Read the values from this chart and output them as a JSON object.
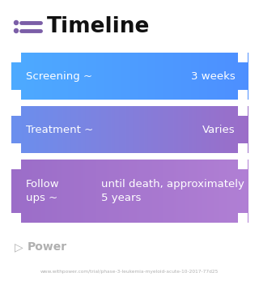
{
  "title": "Timeline",
  "title_icon_color": "#7B5EA7",
  "bg_color": "#ffffff",
  "rows": [
    {
      "label": "Screening ~",
      "value": "3 weeks",
      "color_left": "#4DAAFF",
      "color_right": "#4D8FFF",
      "label_ha": "left",
      "value_ha": "right",
      "multiline": false
    },
    {
      "label": "Treatment ~",
      "value": "Varies",
      "color_left": "#6A8FEE",
      "color_right": "#9B6DC8",
      "label_ha": "left",
      "value_ha": "right",
      "multiline": false
    },
    {
      "label": "Follow\nups ~",
      "value": "until death, approximately\n5 years",
      "color_left": "#9B6DC8",
      "color_right": "#B07FD4",
      "label_ha": "left",
      "value_ha": "left",
      "multiline": true
    }
  ],
  "footer_logo_color": "#b0b0b0",
  "footer_text": "Power",
  "url_text": "www.withpower.com/trial/phase-3-leukemia-myeloid-acute-10-2017-77d25",
  "font_color_white": "#ffffff",
  "font_color_gray": "#b0b0b0",
  "font_color_dark": "#111111"
}
